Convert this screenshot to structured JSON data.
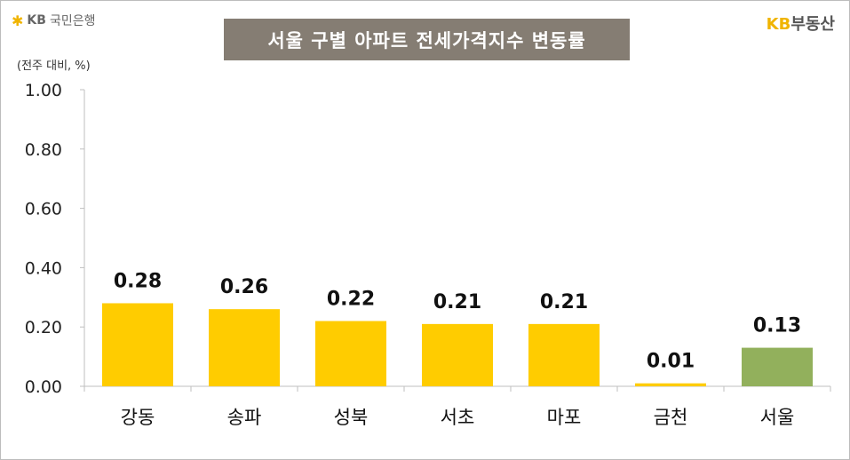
{
  "header": {
    "left_logo_mark": "KB",
    "left_logo_text": "국민은행",
    "right_logo_mark": "KB",
    "right_logo_text": "부동산"
  },
  "chart_data": {
    "type": "bar",
    "title": "서울 구별 아파트 전세가격지수 변동률",
    "unit_label": "(전주 대비, %)",
    "categories": [
      "강동",
      "송파",
      "성북",
      "서초",
      "마포",
      "금천",
      "서울"
    ],
    "values": [
      0.28,
      0.26,
      0.22,
      0.21,
      0.21,
      0.01,
      0.13
    ],
    "value_labels": [
      "0.28",
      "0.26",
      "0.22",
      "0.21",
      "0.21",
      "0.01",
      "0.13"
    ],
    "bar_colors": [
      "#ffcc00",
      "#ffcc00",
      "#ffcc00",
      "#ffcc00",
      "#ffcc00",
      "#ffcc00",
      "#92b05c"
    ],
    "ylim": [
      0,
      1.0
    ],
    "yticks": [
      "0.00",
      "0.20",
      "0.40",
      "0.60",
      "0.80",
      "1.00"
    ],
    "grid": false,
    "legend": "none"
  }
}
